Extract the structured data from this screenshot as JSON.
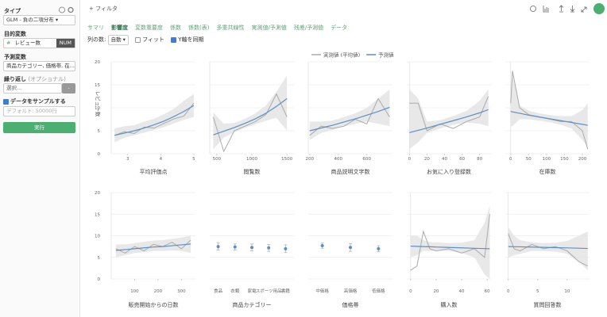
{
  "sidebar": {
    "type_label": "タイプ",
    "type_value": "GLM - 負の二項分布",
    "target_label": "目的変数",
    "target_hash": "#",
    "target_value": "レビュー数",
    "target_badge": "NUM",
    "predictors_label": "予測変数",
    "predictors_value": "商品カテゴリー, 価格帯, 在...",
    "repeat_label": "繰り返し",
    "repeat_optional": "(オプショナル)",
    "repeat_value": "選択...",
    "repeat_button": "-",
    "sample_checked": true,
    "sample_label": "データをサンプルする",
    "sample_placeholder": "デフォルト: 50000行",
    "run_button": "実行"
  },
  "toolbar": {
    "filter": "+ フィルタ",
    "tabs": [
      "サマリ",
      "影響度",
      "変数重要度",
      "係数",
      "係数(表)",
      "多重共線性",
      "実測値/予測値",
      "残差/予測値",
      "データ"
    ],
    "active_tab": 1,
    "columns_label": "列の数:",
    "columns_value": "自動",
    "fit_checked": false,
    "fit_label": "フィット",
    "sync_checked": true,
    "sync_label": "Y軸を同期"
  },
  "legend": [
    {
      "name": "実測値 (平均値)",
      "color": "#aaaaaa"
    },
    {
      "name": "予測値",
      "color": "#5b8fc7"
    }
  ],
  "y_label": "レビュー数",
  "chart_data": [
    {
      "type": "line",
      "x_label": "平均評価点",
      "xlim": [
        2.5,
        5.05
      ],
      "xticks": [
        3,
        4,
        5
      ],
      "ylim": [
        0,
        20
      ],
      "yticks": [
        0,
        5,
        10,
        15,
        20
      ],
      "x": [
        2.6,
        2.9,
        3.2,
        3.5,
        3.8,
        4.1,
        4.4,
        4.7,
        5.0
      ],
      "actual": [
        4.0,
        4.8,
        4.4,
        5.8,
        5.6,
        6.6,
        7.6,
        8.2,
        11.0
      ],
      "predicted": [
        4.0,
        4.5,
        5.0,
        5.6,
        6.3,
        7.1,
        8.1,
        9.2,
        10.5
      ],
      "lower": [
        2.5,
        3.5,
        4.0,
        4.6,
        5.2,
        5.8,
        6.6,
        7.4,
        8.0
      ],
      "upper": [
        5.5,
        6.0,
        6.2,
        7.0,
        7.6,
        8.6,
        9.8,
        11.5,
        13.0
      ]
    },
    {
      "type": "line",
      "x_label": "閲覧数",
      "xlim": [
        400,
        1600
      ],
      "xticks": [
        500,
        1000,
        1500
      ],
      "ylim": [
        0,
        20
      ],
      "yticks": [
        0,
        5,
        10,
        15,
        20
      ],
      "x": [
        450,
        600,
        750,
        900,
        1050,
        1200,
        1350,
        1500
      ],
      "actual": [
        8,
        0.5,
        5,
        6,
        7,
        8.5,
        13,
        8
      ],
      "predicted": [
        4.1,
        4.9,
        5.7,
        6.6,
        7.6,
        8.8,
        10.3,
        12.0
      ],
      "lower": [
        1,
        3.5,
        4.7,
        5.6,
        6.4,
        7.2,
        7.8,
        5
      ],
      "upper": [
        9,
        6.5,
        6.7,
        7.6,
        8.8,
        10.5,
        13.5,
        17
      ]
    },
    {
      "type": "line",
      "x_label": "商品説明文字数",
      "xlim": [
        190,
        780
      ],
      "xticks": [
        200,
        400,
        600
      ],
      "ylim": [
        0,
        20
      ],
      "yticks": [
        0,
        5,
        10,
        15,
        20
      ],
      "x": [
        200,
        280,
        360,
        440,
        520,
        600,
        680,
        760
      ],
      "actual": [
        4,
        6,
        5.5,
        6,
        7.5,
        6.5,
        12,
        8
      ],
      "predicted": [
        5.0,
        5.6,
        6.2,
        6.9,
        7.6,
        8.4,
        9.2,
        10.1
      ],
      "lower": [
        3,
        4.5,
        5.2,
        5.9,
        6.5,
        7,
        6.5,
        6
      ],
      "upper": [
        7,
        7,
        7.2,
        8,
        8.8,
        10,
        12,
        14
      ]
    },
    {
      "type": "line",
      "x_label": "お気に入り登録数",
      "xlim": [
        -3,
        93
      ],
      "xticks": [
        0,
        20,
        40,
        60,
        80
      ],
      "ylim": [
        0,
        20
      ],
      "yticks": [
        0,
        5,
        10,
        15,
        20
      ],
      "x": [
        0,
        10,
        20,
        35,
        50,
        65,
        80,
        90
      ],
      "actual": [
        11,
        11,
        5,
        6.5,
        5.5,
        7,
        8,
        12.5
      ],
      "predicted": [
        4.6,
        5.1,
        5.6,
        6.4,
        7.2,
        8.0,
        8.9,
        9.6
      ],
      "lower": [
        1,
        2.5,
        4.5,
        5.5,
        6.3,
        6.8,
        6.5,
        6
      ],
      "upper": [
        14,
        12,
        7,
        7.3,
        8.2,
        9.3,
        11.5,
        14
      ]
    },
    {
      "type": "line",
      "x_label": "在庫数",
      "xlim": [
        -15,
        220
      ],
      "xticks": [
        0,
        50,
        100,
        150,
        200
      ],
      "ylim": [
        0,
        20
      ],
      "yticks": [
        0,
        5,
        10,
        15,
        20
      ],
      "x": [
        0,
        5,
        25,
        50,
        80,
        110,
        140,
        170,
        200,
        215
      ],
      "actual": [
        11,
        18,
        10,
        8.5,
        8,
        7.5,
        7,
        7,
        5,
        1
      ],
      "predicted": [
        9.2,
        9.1,
        8.8,
        8.4,
        8.0,
        7.6,
        7.2,
        6.8,
        6.4,
        6.2
      ],
      "lower": [
        6,
        6,
        7.5,
        7.5,
        7.2,
        6.8,
        6.3,
        5.5,
        3,
        1.5
      ],
      "upper": [
        14,
        17,
        10.5,
        9.4,
        8.8,
        8.4,
        8.2,
        8.2,
        9.5,
        11
      ]
    },
    {
      "type": "line",
      "x_label": "販売開始からの日数",
      "xlim": [
        0,
        360
      ],
      "xticks": [
        100,
        200,
        300
      ],
      "ylim": [
        0,
        20
      ],
      "yticks": [
        0,
        5,
        10,
        15,
        20
      ],
      "x": [
        20,
        60,
        100,
        140,
        180,
        220,
        260,
        300,
        340
      ],
      "actual": [
        7,
        6,
        7.5,
        6.5,
        8,
        7.5,
        8.5,
        7,
        9
      ],
      "predicted": [
        6.6,
        6.8,
        7.0,
        7.2,
        7.4,
        7.5,
        7.7,
        7.9,
        8.1
      ],
      "lower": [
        5,
        5.5,
        6,
        6.2,
        6.5,
        6.5,
        6.6,
        6.5,
        6
      ],
      "upper": [
        8,
        8,
        8.3,
        8.6,
        8.9,
        9,
        9.3,
        9.6,
        10
      ]
    },
    {
      "type": "errorbar",
      "x_label": "商品カテゴリー",
      "ylim": [
        0,
        20
      ],
      "yticks": [
        0,
        5,
        10,
        15,
        20
      ],
      "categories": [
        "食品",
        "衣類",
        "家電",
        "スポーツ用品",
        "書籍"
      ],
      "values": [
        7.5,
        7.4,
        7.3,
        7.2,
        7.0
      ],
      "errors": [
        0.8,
        0.7,
        0.8,
        0.8,
        0.9
      ]
    },
    {
      "type": "errorbar",
      "x_label": "価格帯",
      "ylim": [
        0,
        20
      ],
      "yticks": [
        0,
        5,
        10,
        15,
        20
      ],
      "categories": [
        "中価格",
        "高価格",
        "低価格"
      ],
      "values": [
        7.7,
        7.3,
        7.0
      ],
      "errors": [
        0.6,
        0.9,
        0.7
      ]
    },
    {
      "type": "line",
      "x_label": "購入数",
      "xlim": [
        -3,
        63
      ],
      "xticks": [
        0,
        20,
        40,
        60
      ],
      "ylim": [
        0,
        20
      ],
      "yticks": [
        0,
        5,
        10,
        15,
        20
      ],
      "x": [
        0,
        5,
        10,
        15,
        20,
        30,
        40,
        50,
        58,
        62
      ],
      "actual": [
        2,
        3,
        11,
        7,
        6.5,
        7,
        6,
        7,
        5,
        15
      ],
      "predicted": [
        7.6,
        7.55,
        7.5,
        7.45,
        7.4,
        7.3,
        7.2,
        7.1,
        7.03,
        7.0
      ],
      "lower": [
        5,
        5.5,
        6.5,
        6.5,
        6.5,
        6.5,
        6,
        5,
        1,
        0
      ],
      "upper": [
        10,
        10,
        9,
        8.5,
        8.5,
        8.3,
        8.4,
        9,
        13,
        17
      ]
    },
    {
      "type": "line",
      "x_label": "質問回答数",
      "xlim": [
        -0.5,
        13.8
      ],
      "xticks": [
        0,
        5,
        10
      ],
      "ylim": [
        0,
        20
      ],
      "yticks": [
        0,
        5,
        10,
        15,
        20
      ],
      "x": [
        0,
        1,
        2,
        4,
        6,
        8,
        10,
        12,
        13.5
      ],
      "actual": [
        10.5,
        7,
        6.5,
        8,
        7,
        7.5,
        6.5,
        4,
        3
      ],
      "predicted": [
        7.5,
        7.47,
        7.44,
        7.38,
        7.31,
        7.25,
        7.19,
        7.12,
        7.05
      ],
      "lower": [
        5,
        5.5,
        5.8,
        6.5,
        6.5,
        6.3,
        5.8,
        4,
        2
      ],
      "upper": [
        12,
        10,
        9,
        8.5,
        8.3,
        8.4,
        8.8,
        10,
        11
      ]
    }
  ]
}
